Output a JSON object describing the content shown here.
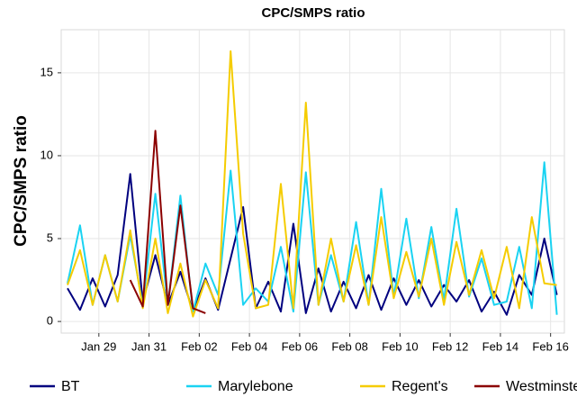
{
  "chart_data": {
    "type": "line",
    "title": "CPC/SMPS ratio",
    "y_label": "CPC/SMPS ratio",
    "x": [
      27.75,
      28.25,
      28.75,
      29.25,
      29.75,
      30.25,
      30.75,
      31.25,
      31.75,
      32.25,
      32.75,
      33.25,
      33.75,
      34.25,
      34.75,
      35.25,
      35.75,
      36.25,
      36.75,
      37.25,
      37.75,
      38.25,
      38.75,
      39.25,
      39.75,
      40.25,
      40.75,
      41.25,
      41.75,
      42.25,
      42.75,
      43.25,
      43.75,
      44.25,
      44.75,
      45.25,
      45.75,
      46.25,
      46.75,
      47.25
    ],
    "series": [
      {
        "name": "BT",
        "color": "#00007f",
        "values": [
          2.0,
          0.7,
          2.6,
          0.9,
          2.8,
          8.9,
          1.2,
          4.0,
          1.0,
          3.0,
          0.6,
          2.6,
          0.7,
          3.8,
          6.9,
          0.8,
          2.4,
          0.6,
          5.9,
          0.5,
          3.2,
          0.6,
          2.4,
          0.8,
          2.8,
          0.7,
          2.6,
          1.0,
          2.5,
          0.9,
          2.2,
          1.2,
          2.5,
          0.6,
          1.8,
          0.4,
          2.8,
          1.6,
          5.0,
          1.6
        ]
      },
      {
        "name": "Marylebone",
        "color": "#1ad3f2",
        "values": [
          2.3,
          5.8,
          1.0,
          4.0,
          1.2,
          5.2,
          1.0,
          7.7,
          1.0,
          7.6,
          0.6,
          3.5,
          1.6,
          9.1,
          1.0,
          2.0,
          1.2,
          4.5,
          0.6,
          9.0,
          1.0,
          4.0,
          1.2,
          6.0,
          1.0,
          8.0,
          1.5,
          6.2,
          1.4,
          5.7,
          1.3,
          6.8,
          1.5,
          3.8,
          1.0,
          1.2,
          4.5,
          0.8,
          9.6,
          0.4
        ]
      },
      {
        "name": "Regent's",
        "color": "#f5cc00",
        "values": [
          2.2,
          4.3,
          1.0,
          4.0,
          1.2,
          5.5,
          0.8,
          5.0,
          0.5,
          3.5,
          0.3,
          2.5,
          0.8,
          16.3,
          5.3,
          0.8,
          1.0,
          8.3,
          0.8,
          13.2,
          1.0,
          5.0,
          1.2,
          4.6,
          1.0,
          6.3,
          1.4,
          4.2,
          1.5,
          5.0,
          1.0,
          4.8,
          1.6,
          4.3,
          1.4,
          4.5,
          0.8,
          6.3,
          2.3,
          2.2
        ]
      },
      {
        "name": "Westminster",
        "color": "#8b0000",
        "values": [
          null,
          null,
          null,
          null,
          null,
          2.5,
          0.9,
          11.5,
          1.0,
          7.0,
          0.8,
          0.5,
          null,
          null,
          null,
          null,
          null,
          null,
          null,
          null,
          null,
          null,
          null,
          null,
          null,
          null,
          null,
          null,
          null,
          null,
          null,
          null,
          null,
          null,
          null,
          null,
          null,
          null,
          null,
          null
        ]
      }
    ],
    "xlim": [
      27.5,
      47.55
    ],
    "xticks": [
      {
        "value": 29,
        "label": "Jan 29"
      },
      {
        "value": 31,
        "label": "Jan 31"
      },
      {
        "value": 33,
        "label": "Feb 02"
      },
      {
        "value": 35,
        "label": "Feb 04"
      },
      {
        "value": 37,
        "label": "Feb 06"
      },
      {
        "value": 39,
        "label": "Feb 08"
      },
      {
        "value": 41,
        "label": "Feb 10"
      },
      {
        "value": 43,
        "label": "Feb 12"
      },
      {
        "value": 45,
        "label": "Feb 14"
      },
      {
        "value": 47,
        "label": "Feb 16"
      }
    ],
    "ylim": [
      -0.7,
      17.6
    ],
    "yticks": [
      0,
      5,
      10,
      15
    ],
    "grid": true,
    "legend": "bottom"
  }
}
